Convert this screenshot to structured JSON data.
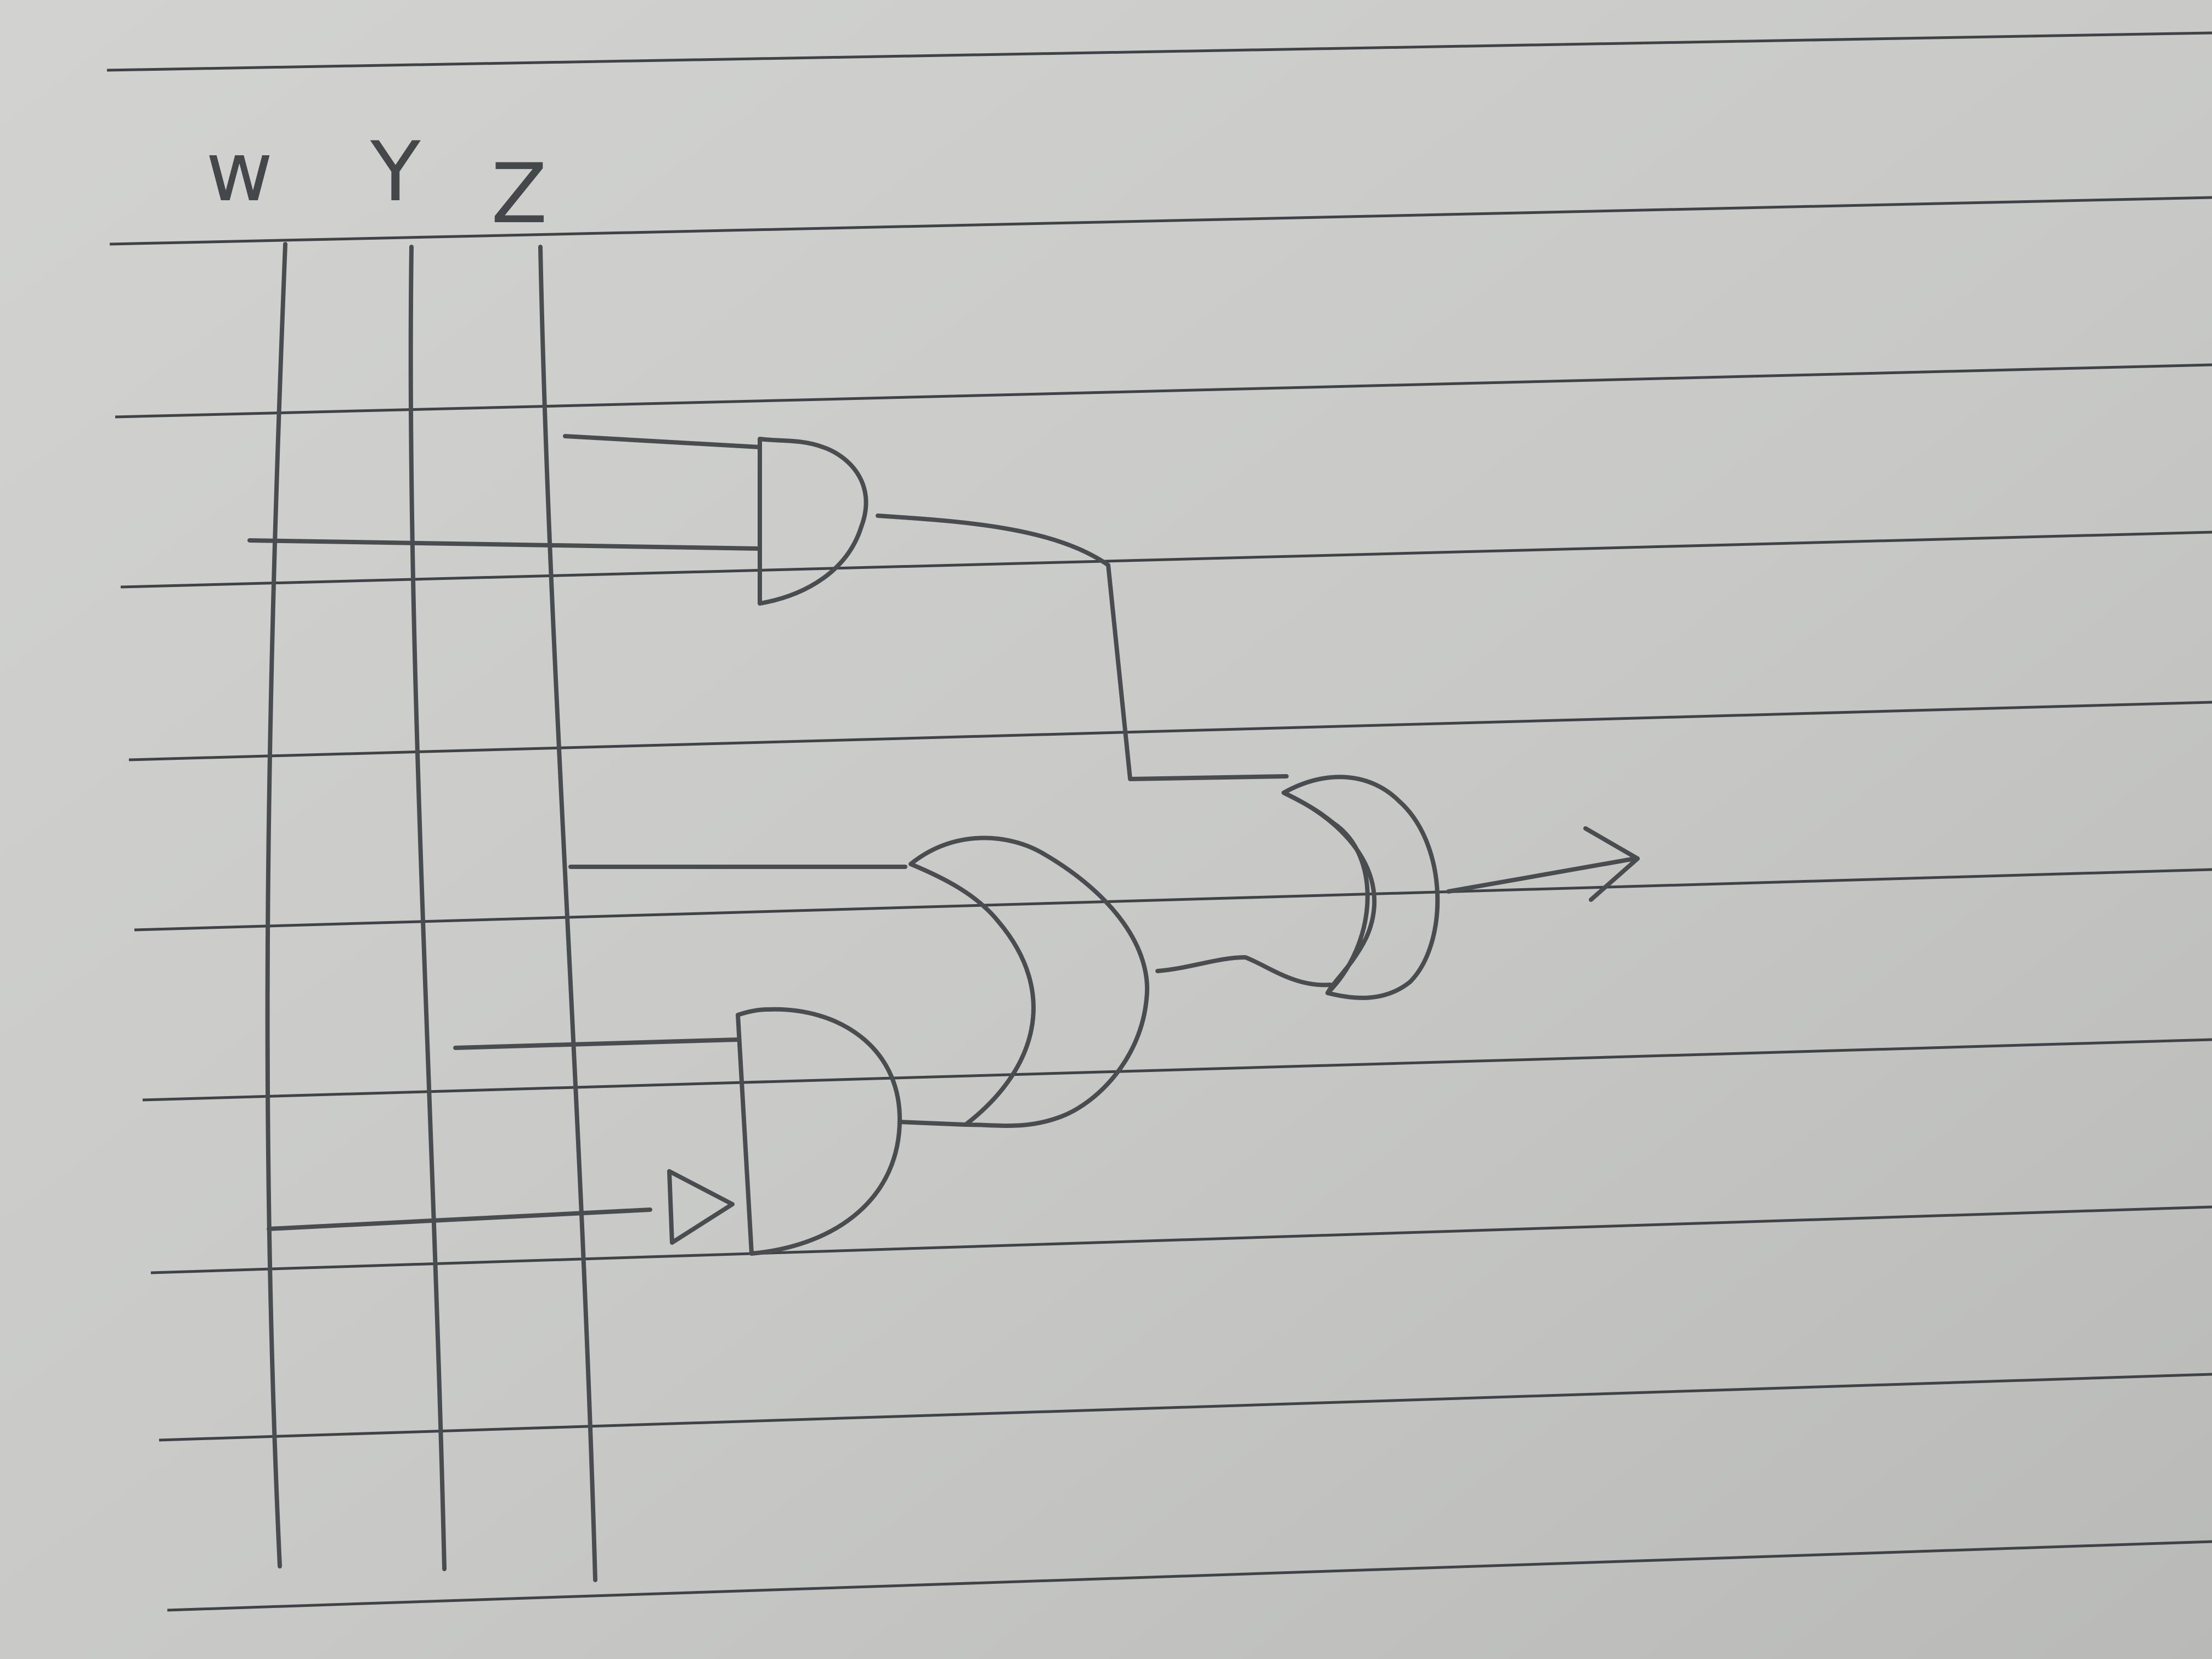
{
  "inputs": {
    "w": "w",
    "y": "Y",
    "z": "Z"
  },
  "gates": [
    {
      "id": "and-1",
      "kind": "AND"
    },
    {
      "id": "and-2",
      "kind": "AND"
    },
    {
      "id": "or-1",
      "kind": "OR"
    },
    {
      "id": "or-2",
      "kind": "OR"
    },
    {
      "id": "not-1",
      "kind": "NOT"
    }
  ],
  "colors": {
    "paper": "#c9c9c7",
    "ink": "#4a4d50",
    "rule": "#3f4246"
  }
}
